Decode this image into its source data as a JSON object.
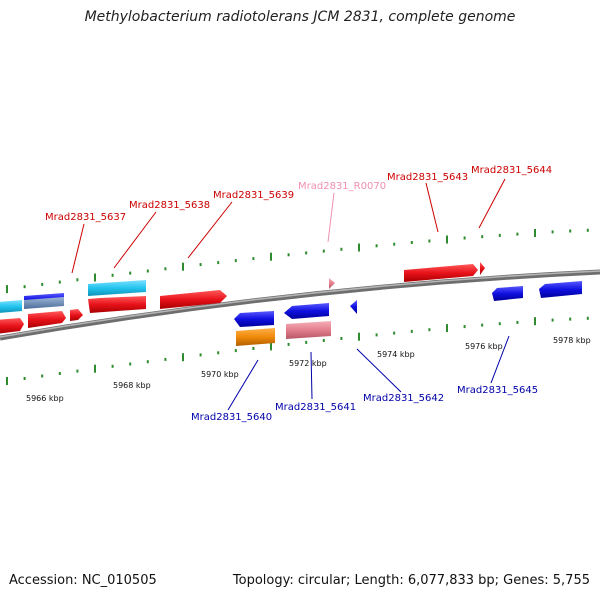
{
  "title": "Methylobacterium radiotolerans JCM 2831, complete genome",
  "footer": {
    "accession": "Accession: NC_010505",
    "summary": "Topology: circular; Length: 6,077,833 bp; Genes: 5,755"
  },
  "colors": {
    "forward_cds": "#e8121a",
    "reverse_cds": "#1010e0",
    "rna_gene": "#e37e8e",
    "cyan_feature": "#22c4ee",
    "orange_feature": "#f08a0a",
    "axis": "#8a8a8a",
    "tick": "#2e8b2e",
    "label_forward": "#cc0000",
    "label_reverse": "#0000aa",
    "label_rna": "#f08fb0"
  },
  "scale_labels": [
    "5966 kbp",
    "5968 kbp",
    "5970 kbp",
    "5972 kbp",
    "5974 kbp",
    "5976 kbp",
    "5978 kbp"
  ],
  "gene_labels": [
    {
      "id": "Mrad2831_5637",
      "strand": "forward"
    },
    {
      "id": "Mrad2831_5638",
      "strand": "forward"
    },
    {
      "id": "Mrad2831_5639",
      "strand": "forward"
    },
    {
      "id": "Mrad2831_R0070",
      "strand": "rna"
    },
    {
      "id": "Mrad2831_5643",
      "strand": "forward"
    },
    {
      "id": "Mrad2831_5644",
      "strand": "forward"
    },
    {
      "id": "Mrad2831_5640",
      "strand": "reverse"
    },
    {
      "id": "Mrad2831_5641",
      "strand": "reverse"
    },
    {
      "id": "Mrad2831_5642",
      "strand": "reverse"
    },
    {
      "id": "Mrad2831_5645",
      "strand": "reverse"
    }
  ]
}
